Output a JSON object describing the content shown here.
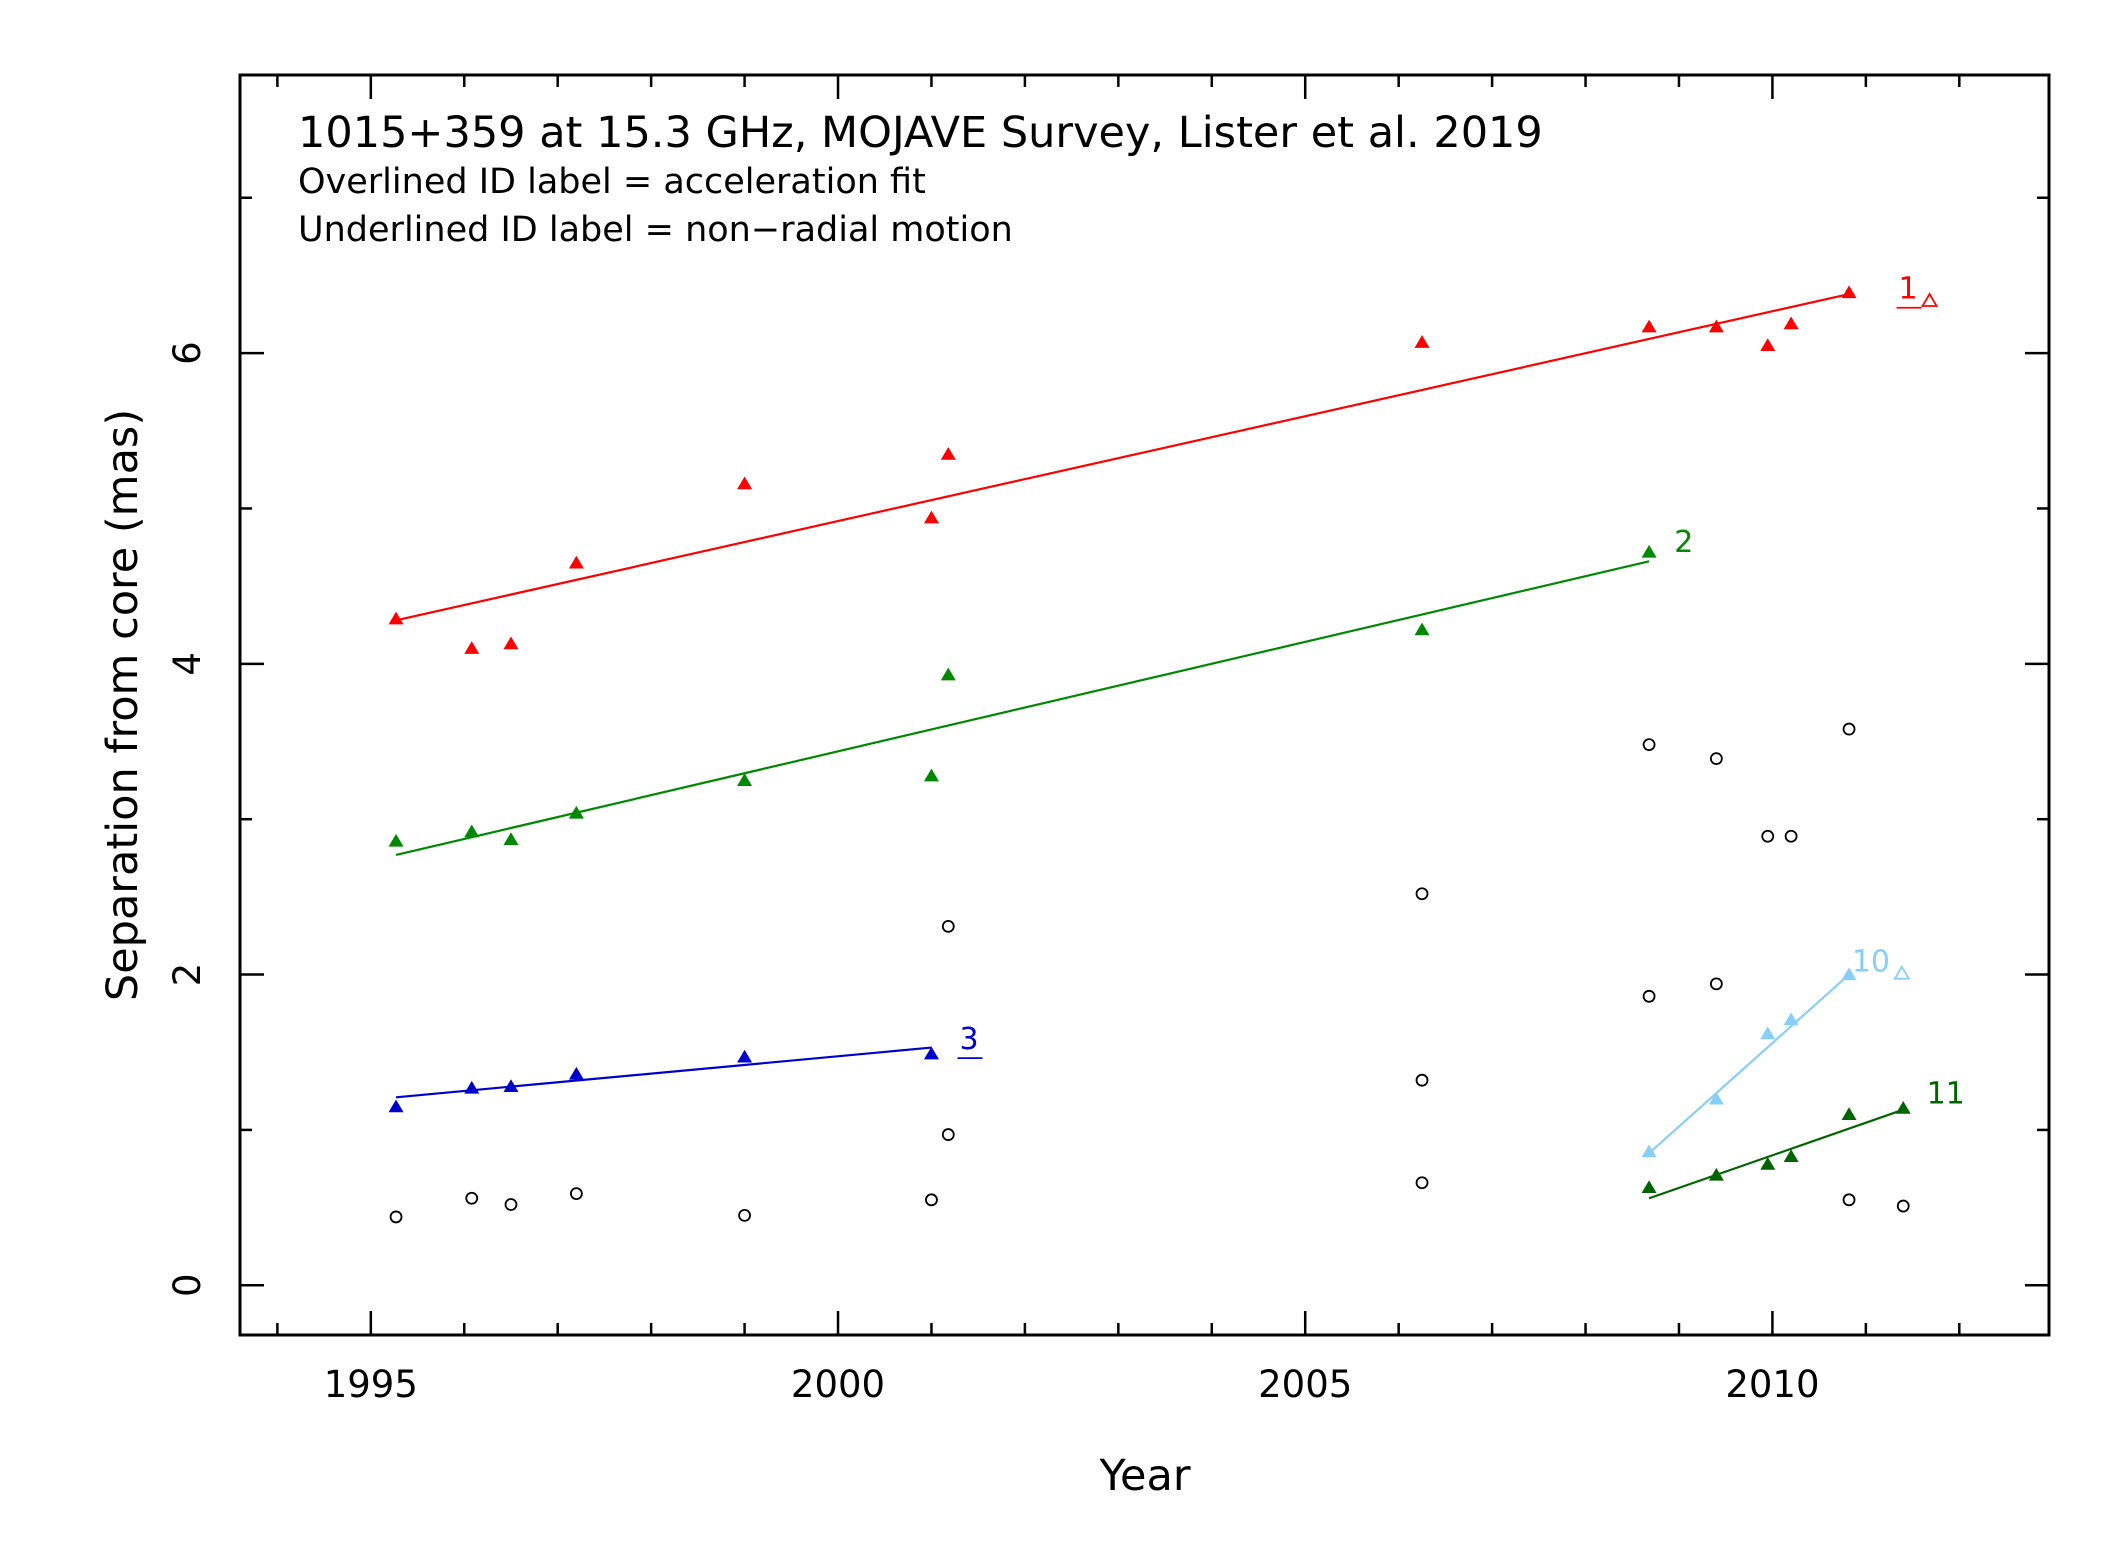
{
  "chart_data": {
    "type": "scatter",
    "title": "1015+359 at 15.3 GHz, MOJAVE Survey, Lister et al. 2019",
    "subtitle_lines": [
      "Overlined ID label = acceleration fit",
      "Underlined ID label = non−radial motion"
    ],
    "xlabel": "Year",
    "ylabel": "Separation from core (mas)",
    "xlim": [
      1993.6,
      2012.96
    ],
    "ylim": [
      -0.32,
      7.79
    ],
    "xticks_major": [
      1995,
      2000,
      2005,
      2010
    ],
    "xtick_labels": [
      "1995",
      "2000",
      "2005",
      "2010"
    ],
    "yticks_major": [
      0,
      2,
      4,
      6
    ],
    "ytick_labels": [
      "0",
      "2",
      "4",
      "6"
    ],
    "grid": false,
    "series": [
      {
        "id": "1",
        "color": "#ff0000",
        "label_style": "underline",
        "label_marker": "open-triangle",
        "label_pos": [
          2011.35,
          6.35
        ],
        "x": [
          1995.27,
          1996.08,
          1996.5,
          1997.2,
          1999.0,
          2001.0,
          2001.18,
          2006.25,
          2008.68,
          2009.4,
          2009.95,
          2010.2,
          2010.82
        ],
        "y": [
          4.29,
          4.1,
          4.13,
          4.65,
          5.16,
          4.94,
          5.35,
          6.07,
          6.17,
          6.17,
          6.05,
          6.19,
          6.39
        ],
        "fit": {
          "x": [
            1995.27,
            2010.82
          ],
          "y": [
            4.28,
            6.38
          ]
        }
      },
      {
        "id": "2",
        "color": "#008800",
        "label_style": "plain",
        "label_marker": "",
        "label_pos": [
          2008.95,
          4.72
        ],
        "x": [
          1995.27,
          1996.08,
          1996.5,
          1997.2,
          1999.0,
          2001.0,
          2001.18,
          2006.25,
          2008.68
        ],
        "y": [
          2.86,
          2.92,
          2.87,
          3.04,
          3.25,
          3.28,
          3.93,
          4.22,
          4.72
        ],
        "fit": {
          "x": [
            1995.27,
            2008.68
          ],
          "y": [
            2.77,
            4.66
          ]
        }
      },
      {
        "id": "3",
        "color": "#0000cc",
        "label_style": "underline",
        "label_marker": "",
        "label_pos": [
          2001.3,
          1.52
        ],
        "x": [
          1995.27,
          1996.08,
          1996.5,
          1997.2,
          1999.0,
          2001.0
        ],
        "y": [
          1.15,
          1.27,
          1.28,
          1.36,
          1.47,
          1.49
        ],
        "fit": {
          "x": [
            1995.27,
            2001.0
          ],
          "y": [
            1.21,
            1.53
          ]
        }
      },
      {
        "id": "10",
        "color": "#87cefa",
        "label_style": "plain",
        "label_marker": "open-triangle",
        "label_pos": [
          2010.85,
          2.02
        ],
        "x": [
          2008.68,
          2009.4,
          2009.95,
          2010.2,
          2010.82
        ],
        "y": [
          0.86,
          1.2,
          1.62,
          1.71,
          2.0
        ],
        "fit": {
          "x": [
            2008.68,
            2010.82
          ],
          "y": [
            0.85,
            2.0
          ]
        }
      },
      {
        "id": "11",
        "color": "#006400",
        "label_style": "plain",
        "label_marker": "",
        "label_pos": [
          2011.65,
          1.17
        ],
        "x": [
          2008.68,
          2009.4,
          2009.95,
          2010.2,
          2010.82,
          2011.4
        ],
        "y": [
          0.63,
          0.71,
          0.78,
          0.83,
          1.1,
          1.14
        ],
        "fit": {
          "x": [
            2008.68,
            2011.4
          ],
          "y": [
            0.56,
            1.13
          ]
        }
      },
      {
        "id": "",
        "color": "#000000",
        "marker": "open-circle",
        "x": [
          1995.27,
          1996.08,
          1996.5,
          1997.2,
          1999.0,
          2001.0,
          2001.18,
          2001.18,
          2006.25,
          2006.25,
          2006.25,
          2008.68,
          2008.68,
          2009.4,
          2009.4,
          2009.95,
          2010.2,
          2010.82,
          2010.82,
          2011.4
        ],
        "y": [
          0.44,
          0.56,
          0.52,
          0.59,
          0.45,
          0.55,
          0.97,
          2.31,
          0.66,
          1.32,
          2.52,
          1.86,
          3.48,
          1.94,
          3.39,
          2.89,
          2.89,
          3.58,
          0.55,
          0.51
        ]
      }
    ]
  }
}
